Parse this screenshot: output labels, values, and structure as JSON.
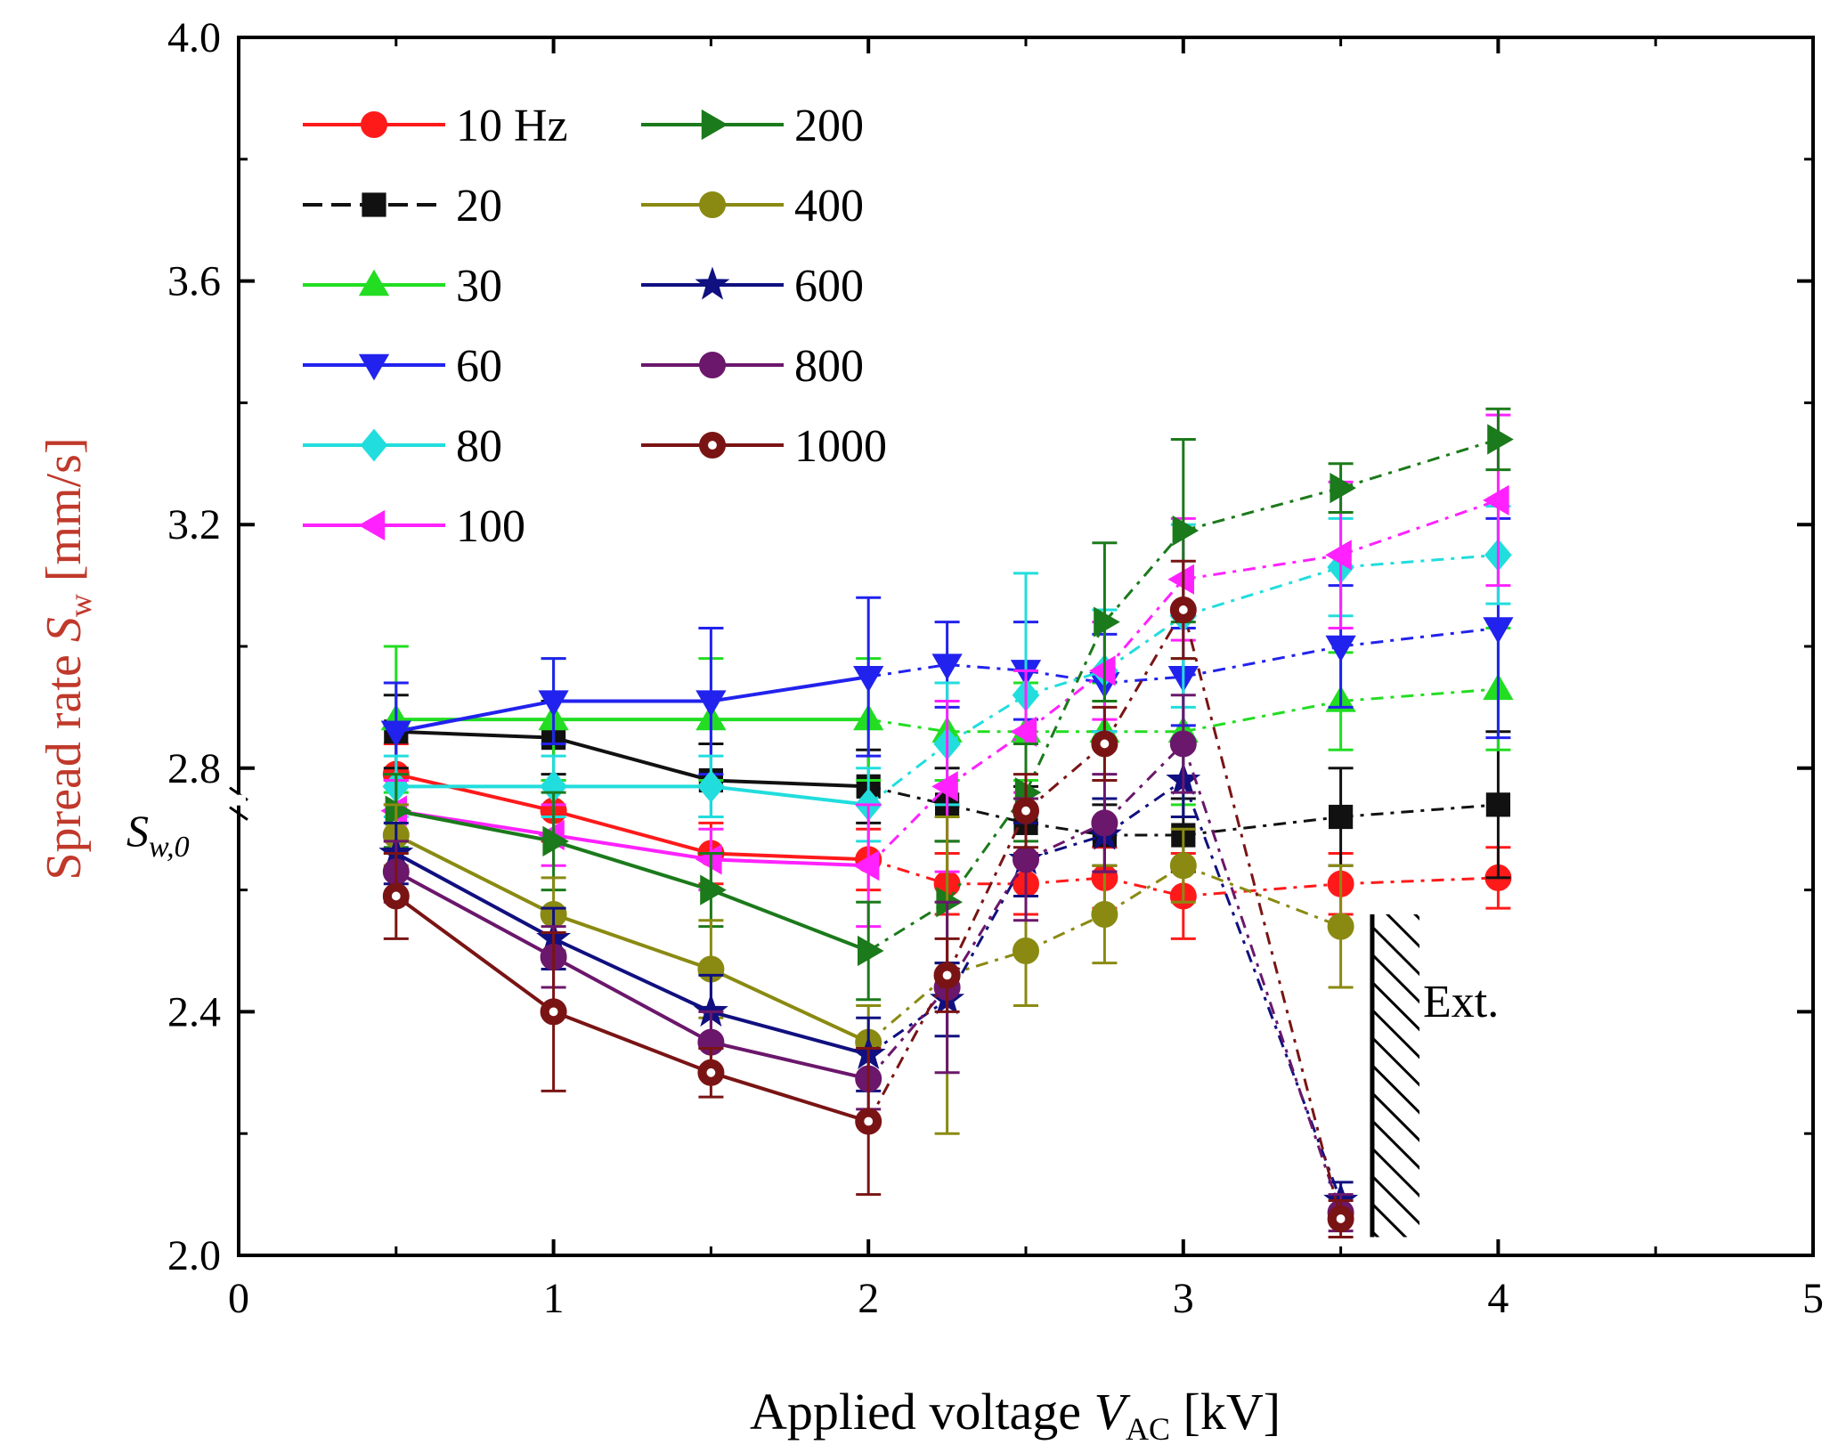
{
  "chart_data": {
    "type": "line",
    "xlabel_parts": {
      "prefix": "Applied voltage ",
      "var": "V",
      "sub": "AC",
      "suffix": " [kV]"
    },
    "ylabel_parts": {
      "prefix": "Spread rate ",
      "var": "S",
      "sub": "w",
      "suffix": " [mm/s]"
    },
    "xlim": [
      0,
      5
    ],
    "ylim": [
      2.0,
      4.0
    ],
    "xticks": [
      "0",
      "1",
      "2",
      "3",
      "4",
      "5"
    ],
    "yticks": [
      "2.0",
      "2.4",
      "2.8",
      "3.2",
      "3.6",
      "4.0"
    ],
    "xtick_values": [
      0,
      1,
      2,
      3,
      4,
      5
    ],
    "ytick_values": [
      2.0,
      2.4,
      2.8,
      3.2,
      3.6,
      4.0
    ],
    "ref_label": {
      "var": "S",
      "sub": "w,0",
      "y": 2.73
    },
    "extinction_label": "Ext.",
    "extinction_region": {
      "x": [
        3.6,
        3.75
      ],
      "y": [
        2.03,
        2.56
      ]
    },
    "legend_placement": "top-left",
    "series": [
      {
        "name": "10 Hz",
        "color": "#ff1a1a",
        "marker": "circle",
        "x": [
          0.5,
          1,
          1.5,
          2,
          2.25,
          2.5,
          2.75,
          3,
          3.5,
          4
        ],
        "y": [
          2.79,
          2.73,
          2.66,
          2.65,
          2.61,
          2.61,
          2.62,
          2.59,
          2.61,
          2.62
        ],
        "err": [
          0.05,
          0.05,
          0.05,
          0.05,
          0.05,
          0.05,
          0.05,
          0.07,
          0.05,
          0.05
        ]
      },
      {
        "name": "20",
        "color": "#111111",
        "marker": "square",
        "x": [
          0.5,
          1,
          1.5,
          2,
          2.25,
          2.5,
          2.75,
          3,
          3.5,
          4
        ],
        "y": [
          2.86,
          2.85,
          2.78,
          2.77,
          2.74,
          2.71,
          2.69,
          2.69,
          2.72,
          2.74
        ],
        "err": [
          0.06,
          0.06,
          0.06,
          0.06,
          0.06,
          0.06,
          0.05,
          0.06,
          0.08,
          0.12
        ]
      },
      {
        "name": "30",
        "color": "#22dd22",
        "marker": "triangle-up",
        "x": [
          0.5,
          1,
          1.5,
          2,
          2.25,
          2.5,
          2.75,
          3,
          3.5,
          4
        ],
        "y": [
          2.88,
          2.88,
          2.88,
          2.88,
          2.86,
          2.86,
          2.86,
          2.86,
          2.91,
          2.93
        ],
        "err": [
          0.12,
          0.1,
          0.1,
          0.1,
          0.08,
          0.08,
          0.08,
          0.12,
          0.08,
          0.1
        ]
      },
      {
        "name": "60",
        "color": "#2222ee",
        "marker": "triangle-down",
        "x": [
          0.5,
          1,
          1.5,
          2,
          2.25,
          2.5,
          2.75,
          3,
          3.5,
          4
        ],
        "y": [
          2.86,
          2.91,
          2.91,
          2.95,
          2.97,
          2.96,
          2.94,
          2.95,
          3.0,
          3.03
        ],
        "err": [
          0.08,
          0.07,
          0.12,
          0.13,
          0.07,
          0.08,
          0.08,
          0.08,
          0.1,
          0.18
        ]
      },
      {
        "name": "80",
        "color": "#22dddd",
        "marker": "diamond",
        "x": [
          0.5,
          1,
          1.5,
          2,
          2.25,
          2.5,
          2.75,
          3,
          3.5,
          4
        ],
        "y": [
          2.77,
          2.77,
          2.77,
          2.74,
          2.84,
          2.92,
          2.96,
          3.05,
          3.13,
          3.15
        ],
        "err": [
          0.05,
          0.05,
          0.05,
          0.06,
          0.1,
          0.2,
          0.1,
          0.15,
          0.08,
          0.08
        ]
      },
      {
        "name": "100",
        "color": "#ff22ff",
        "marker": "triangle-left",
        "x": [
          0.5,
          1,
          1.5,
          2,
          2.25,
          2.5,
          2.75,
          3,
          3.5,
          4
        ],
        "y": [
          2.73,
          2.69,
          2.65,
          2.64,
          2.77,
          2.86,
          2.96,
          3.11,
          3.15,
          3.24
        ],
        "err": [
          0.05,
          0.05,
          0.05,
          0.1,
          0.14,
          0.1,
          0.08,
          0.1,
          0.12,
          0.14
        ]
      },
      {
        "name": "200",
        "color": "#1b7a1b",
        "marker": "triangle-right",
        "x": [
          0.5,
          1,
          1.5,
          2,
          2.25,
          2.5,
          2.75,
          3,
          3.5,
          4
        ],
        "y": [
          2.73,
          2.68,
          2.6,
          2.5,
          2.58,
          2.76,
          3.04,
          3.19,
          3.26,
          3.34
        ],
        "err": [
          0.06,
          0.08,
          0.06,
          0.08,
          0.1,
          0.08,
          0.13,
          0.15,
          0.04,
          0.05
        ]
      },
      {
        "name": "400",
        "color": "#8a8a12",
        "marker": "circle",
        "x": [
          0.5,
          1,
          1.5,
          2,
          2.25,
          2.5,
          2.75,
          3,
          3.5
        ],
        "y": [
          2.69,
          2.56,
          2.47,
          2.35,
          2.46,
          2.5,
          2.56,
          2.64,
          2.54
        ],
        "err": [
          0.05,
          0.06,
          0.08,
          0.06,
          0.26,
          0.09,
          0.08,
          0.06,
          0.1
        ]
      },
      {
        "name": "600",
        "color": "#101080",
        "marker": "star",
        "x": [
          0.5,
          1,
          1.5,
          2,
          2.25,
          2.5,
          2.75,
          3,
          3.5
        ],
        "y": [
          2.66,
          2.52,
          2.4,
          2.33,
          2.42,
          2.65,
          2.69,
          2.78,
          2.09
        ],
        "err": [
          0.05,
          0.05,
          0.06,
          0.06,
          0.06,
          0.06,
          0.06,
          0.06,
          0.03
        ]
      },
      {
        "name": "800",
        "color": "#6b176b",
        "marker": "circle",
        "x": [
          0.5,
          1,
          1.5,
          2,
          2.25,
          2.5,
          2.75,
          3,
          3.5
        ],
        "y": [
          2.63,
          2.49,
          2.35,
          2.29,
          2.44,
          2.65,
          2.71,
          2.84,
          2.07
        ],
        "err": [
          0.05,
          0.05,
          0.05,
          0.05,
          0.14,
          0.1,
          0.08,
          0.08,
          0.03
        ]
      },
      {
        "name": "1000",
        "color": "#7a1414",
        "marker": "circle-open",
        "x": [
          0.5,
          1,
          1.5,
          2,
          2.25,
          2.5,
          2.75,
          3,
          3.5
        ],
        "y": [
          2.59,
          2.4,
          2.3,
          2.22,
          2.46,
          2.73,
          2.84,
          3.06,
          2.06
        ],
        "err": [
          0.07,
          0.13,
          0.04,
          0.12,
          0.06,
          0.06,
          0.06,
          0.08,
          0.03
        ]
      }
    ],
    "legend_layout": [
      [
        "10 Hz",
        "200"
      ],
      [
        "20",
        "400"
      ],
      [
        "30",
        "600"
      ],
      [
        "60",
        "800"
      ],
      [
        "80",
        "1000"
      ],
      [
        "100",
        null
      ]
    ]
  }
}
